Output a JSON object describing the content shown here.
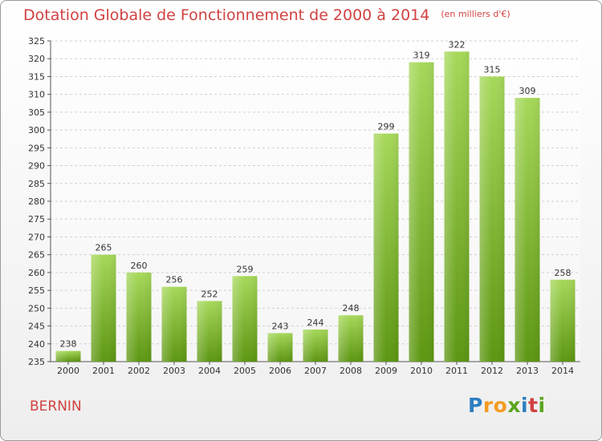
{
  "title": "Dotation Globale de Fonctionnement de 2000 à 2014",
  "unit_label": "(en milliers d'€)",
  "commune": "BERNIN",
  "logo": {
    "letters": [
      "P",
      "r",
      "o",
      "x",
      "i",
      "t",
      "i"
    ],
    "colors": [
      "#2d7fc1",
      "#f39b1f",
      "#f39b1f",
      "#5aa51e",
      "#2d7fc1",
      "#d14141",
      "#5aa51e"
    ]
  },
  "colors": {
    "title": "#d14141",
    "bar_top": "#a6d85a",
    "bar_bottom": "#5c9611",
    "grid": "#d0d0d0"
  },
  "chart_data": {
    "type": "bar",
    "title": "Dotation Globale de Fonctionnement de 2000 à 2014",
    "xlabel": "",
    "ylabel": "",
    "ylim": [
      235,
      325
    ],
    "yticks": [
      235,
      240,
      245,
      250,
      255,
      260,
      265,
      270,
      275,
      280,
      285,
      290,
      295,
      300,
      305,
      310,
      315,
      320,
      325
    ],
    "grid": true,
    "categories": [
      "2000",
      "2001",
      "2002",
      "2003",
      "2004",
      "2005",
      "2006",
      "2007",
      "2008",
      "2009",
      "2010",
      "2011",
      "2012",
      "2013",
      "2014"
    ],
    "values": [
      238,
      265,
      260,
      256,
      252,
      259,
      243,
      244,
      248,
      299,
      319,
      322,
      315,
      309,
      258
    ]
  }
}
